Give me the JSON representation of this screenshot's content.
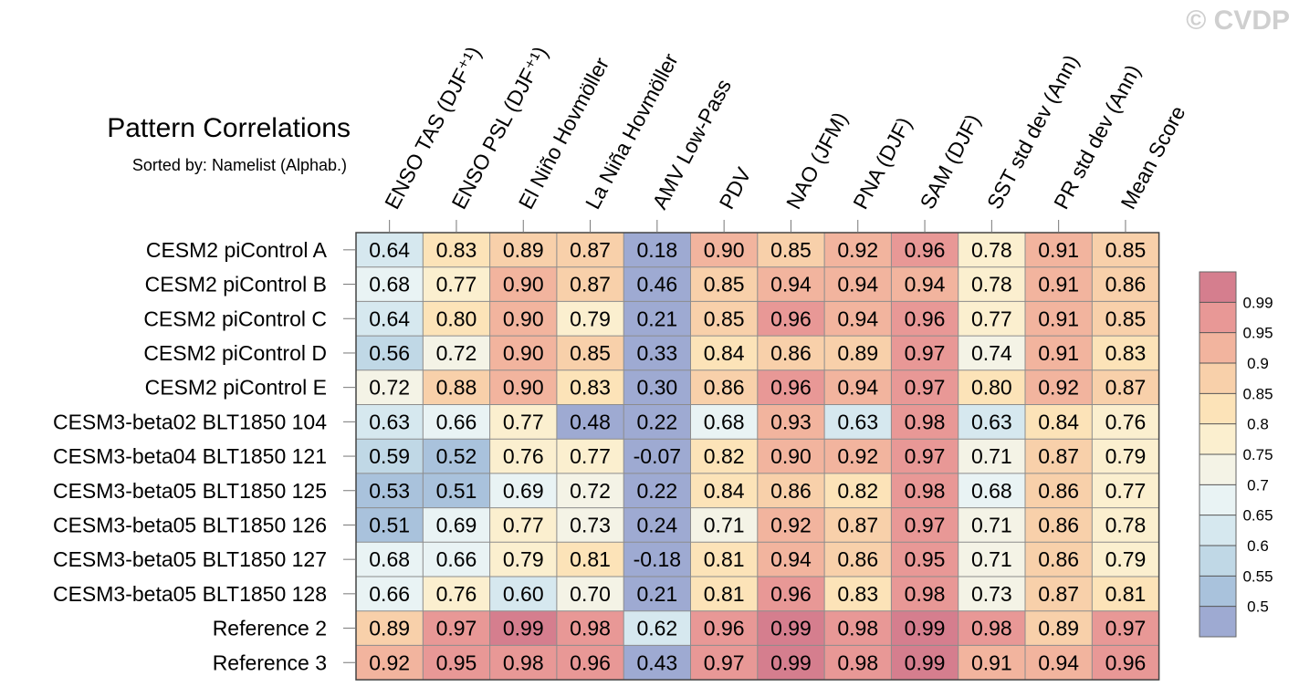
{
  "watermark": "© CVDP",
  "chart_data": {
    "type": "heatmap",
    "title": "Pattern Correlations",
    "subtitle": "Sorted by: Namelist (Alphab.)",
    "columns": [
      "ENSO TAS (DJF⁺¹)",
      "ENSO PSL (DJF⁺¹)",
      "El Niño Hovmöller",
      "La Niña Hovmöller",
      "AMV Low-Pass",
      "PDV",
      "NAO (JFM)",
      "PNA (DJF)",
      "SAM (DJF)",
      "SST std dev (Ann)",
      "PR std dev (Ann)",
      "Mean Score"
    ],
    "rows": [
      "CESM2 piControl A",
      "CESM2 piControl B",
      "CESM2 piControl C",
      "CESM2 piControl D",
      "CESM2 piControl E",
      "CESM3-beta02 BLT1850 104",
      "CESM3-beta04 BLT1850 121",
      "CESM3-beta05 BLT1850 125",
      "CESM3-beta05 BLT1850 126",
      "CESM3-beta05 BLT1850 127",
      "CESM3-beta05 BLT1850 128",
      "Reference 2",
      "Reference 3"
    ],
    "values": [
      [
        "0.64",
        "0.83",
        "0.89",
        "0.87",
        "0.18",
        "0.90",
        "0.85",
        "0.92",
        "0.96",
        "0.78",
        "0.91",
        "0.85"
      ],
      [
        "0.68",
        "0.77",
        "0.90",
        "0.87",
        "0.46",
        "0.85",
        "0.94",
        "0.94",
        "0.94",
        "0.78",
        "0.91",
        "0.86"
      ],
      [
        "0.64",
        "0.80",
        "0.90",
        "0.79",
        "0.21",
        "0.85",
        "0.96",
        "0.94",
        "0.96",
        "0.77",
        "0.91",
        "0.85"
      ],
      [
        "0.56",
        "0.72",
        "0.90",
        "0.85",
        "0.33",
        "0.84",
        "0.86",
        "0.89",
        "0.97",
        "0.74",
        "0.91",
        "0.83"
      ],
      [
        "0.72",
        "0.88",
        "0.90",
        "0.83",
        "0.30",
        "0.86",
        "0.96",
        "0.94",
        "0.97",
        "0.80",
        "0.92",
        "0.87"
      ],
      [
        "0.63",
        "0.66",
        "0.77",
        "0.48",
        "0.22",
        "0.68",
        "0.93",
        "0.63",
        "0.98",
        "0.63",
        "0.84",
        "0.76"
      ],
      [
        "0.59",
        "0.52",
        "0.76",
        "0.77",
        "-0.07",
        "0.82",
        "0.90",
        "0.92",
        "0.97",
        "0.71",
        "0.87",
        "0.79"
      ],
      [
        "0.53",
        "0.51",
        "0.69",
        "0.72",
        "0.22",
        "0.84",
        "0.86",
        "0.82",
        "0.98",
        "0.68",
        "0.86",
        "0.77"
      ],
      [
        "0.51",
        "0.69",
        "0.77",
        "0.73",
        "0.24",
        "0.71",
        "0.92",
        "0.87",
        "0.97",
        "0.71",
        "0.86",
        "0.78"
      ],
      [
        "0.68",
        "0.66",
        "0.79",
        "0.81",
        "-0.18",
        "0.81",
        "0.94",
        "0.86",
        "0.95",
        "0.71",
        "0.86",
        "0.79"
      ],
      [
        "0.66",
        "0.76",
        "0.60",
        "0.70",
        "0.21",
        "0.81",
        "0.96",
        "0.83",
        "0.98",
        "0.73",
        "0.87",
        "0.81"
      ],
      [
        "0.89",
        "0.97",
        "0.99",
        "0.98",
        "0.62",
        "0.96",
        "0.99",
        "0.98",
        "0.99",
        "0.98",
        "0.89",
        "0.97"
      ],
      [
        "0.92",
        "0.95",
        "0.98",
        "0.96",
        "0.43",
        "0.97",
        "0.99",
        "0.98",
        "0.99",
        "0.91",
        "0.94",
        "0.96"
      ]
    ],
    "colorbar": {
      "levels": [
        "0.5",
        "0.55",
        "0.6",
        "0.65",
        "0.7",
        "0.75",
        "0.8",
        "0.85",
        "0.9",
        "0.95",
        "0.99"
      ],
      "colors": [
        "#9eaad2",
        "#a9c2dc",
        "#c0d8e6",
        "#d6e8ef",
        "#e9f3f4",
        "#f4f3e6",
        "#fbefcf",
        "#fce3b8",
        "#f8d0aa",
        "#f2b49e",
        "#e89896",
        "#d57e8e"
      ]
    }
  }
}
